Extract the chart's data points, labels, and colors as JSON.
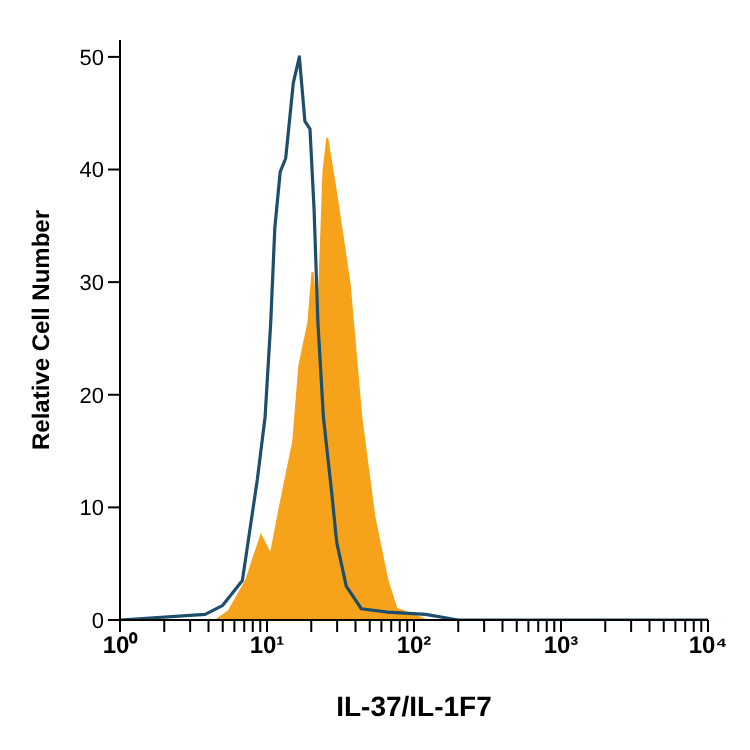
{
  "chart_data": {
    "type": "area",
    "xlabel": "IL-37/IL-1F7",
    "ylabel": "Relative Cell Number",
    "log": "x",
    "xlim": [
      1,
      10000
    ],
    "ylim": [
      0,
      51.5
    ],
    "yticks": [
      0,
      10,
      20,
      30,
      40,
      50
    ],
    "xticks": [
      {
        "value": 1,
        "label": "10⁰"
      },
      {
        "value": 2,
        "label": null
      },
      {
        "value": 3,
        "label": null
      },
      {
        "value": 4,
        "label": null
      },
      {
        "value": 5,
        "label": null
      },
      {
        "value": 6,
        "label": null
      },
      {
        "value": 7,
        "label": null
      },
      {
        "value": 8,
        "label": null
      },
      {
        "value": 9,
        "label": null
      },
      {
        "value": 10,
        "label": "10¹"
      },
      {
        "value": 20,
        "label": null
      },
      {
        "value": 30,
        "label": null
      },
      {
        "value": 40,
        "label": null
      },
      {
        "value": 50,
        "label": null
      },
      {
        "value": 60,
        "label": null
      },
      {
        "value": 70,
        "label": null
      },
      {
        "value": 80,
        "label": null
      },
      {
        "value": 90,
        "label": null
      },
      {
        "value": 100,
        "label": "10²"
      },
      {
        "value": 200,
        "label": null
      },
      {
        "value": 300,
        "label": null
      },
      {
        "value": 400,
        "label": null
      },
      {
        "value": 500,
        "label": null
      },
      {
        "value": 600,
        "label": null
      },
      {
        "value": 700,
        "label": null
      },
      {
        "value": 800,
        "label": null
      },
      {
        "value": 900,
        "label": null
      },
      {
        "value": 1000,
        "label": "10³"
      },
      {
        "value": 2000,
        "label": null
      },
      {
        "value": 3000,
        "label": null
      },
      {
        "value": 4000,
        "label": null
      },
      {
        "value": 5000,
        "label": null
      },
      {
        "value": 6000,
        "label": null
      },
      {
        "value": 7000,
        "label": null
      },
      {
        "value": 8000,
        "label": null
      },
      {
        "value": 9000,
        "label": null
      },
      {
        "value": 10000,
        "label": "10⁴"
      }
    ],
    "marker": "none",
    "series": [
      {
        "color": "#f7a21b",
        "x": [
          1,
          4.5,
          5.5,
          7.2,
          9.1,
          10.6,
          12.3,
          15.1,
          16.6,
          19.1,
          20.4,
          22.2,
          24.2,
          25.7,
          29.8,
          36.5,
          43.8,
          53.7,
          66,
          76,
          97,
          120,
          10000
        ],
        "values": [
          0,
          0,
          0.8,
          3.5,
          7.5,
          5.8,
          10.2,
          15.9,
          22.6,
          26.4,
          30.9,
          25.9,
          39.8,
          42.8,
          37.6,
          29.8,
          18,
          9.2,
          3.5,
          1,
          0.5,
          0,
          0
        ]
      },
      {
        "type": "line",
        "color": "#1d4e6b",
        "x": [
          1,
          3.8,
          5,
          6.8,
          8.6,
          9.7,
          10.6,
          11.3,
          12.3,
          13.4,
          15.1,
          16.6,
          18.1,
          19.6,
          20.9,
          22.2,
          24.2,
          27.5,
          29.8,
          34.6,
          43.8,
          66,
          120,
          200,
          10000
        ],
        "values": [
          0,
          0.5,
          1.3,
          3.5,
          12.5,
          18,
          26.4,
          34.8,
          39.8,
          41,
          47.7,
          50,
          44.3,
          43.6,
          36.5,
          26.4,
          18,
          11.4,
          6.9,
          3,
          1,
          0.7,
          0.5,
          0,
          0
        ]
      }
    ]
  }
}
